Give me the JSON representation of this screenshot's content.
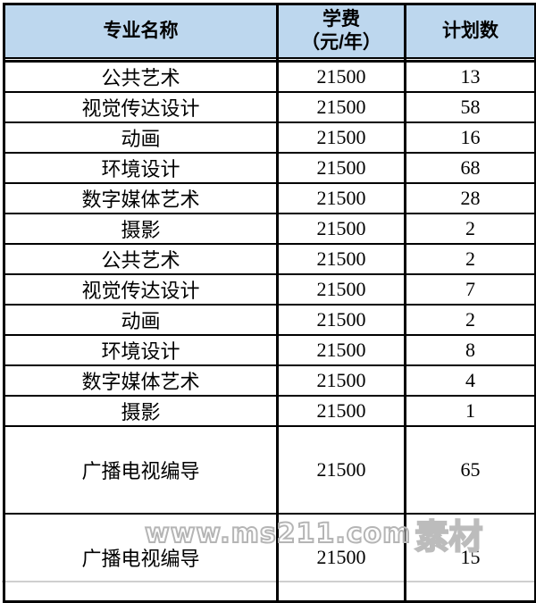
{
  "table": {
    "header": {
      "major": "专业名称",
      "tuition_line1": "学费",
      "tuition_line2": "（元/年）",
      "plan": "计划数"
    },
    "rows": [
      {
        "major": "公共艺术",
        "tuition": "21500",
        "plan": "13"
      },
      {
        "major": "视觉传达设计",
        "tuition": "21500",
        "plan": "58"
      },
      {
        "major": "动画",
        "tuition": "21500",
        "plan": "16"
      },
      {
        "major": "环境设计",
        "tuition": "21500",
        "plan": "68"
      },
      {
        "major": "数字媒体艺术",
        "tuition": "21500",
        "plan": "28"
      },
      {
        "major": "摄影",
        "tuition": "21500",
        "plan": "2"
      },
      {
        "major": "公共艺术",
        "tuition": "21500",
        "plan": "2"
      },
      {
        "major": "视觉传达设计",
        "tuition": "21500",
        "plan": "7"
      },
      {
        "major": "动画",
        "tuition": "21500",
        "plan": "2"
      },
      {
        "major": "环境设计",
        "tuition": "21500",
        "plan": "8"
      },
      {
        "major": "数字媒体艺术",
        "tuition": "21500",
        "plan": "4"
      },
      {
        "major": "摄影",
        "tuition": "21500",
        "plan": "1"
      },
      {
        "major": "广播电视编导",
        "tuition": "21500",
        "plan": "65"
      },
      {
        "major": "广播电视编导",
        "tuition": "21500",
        "plan": "15"
      }
    ]
  },
  "watermark": {
    "site": "www.ms211.com",
    "suffix": "素材"
  },
  "colors": {
    "header_bg": "#BDD7EE",
    "border": "#000000",
    "watermark_stroke": "#B5B5B5",
    "bottom_strip": "#CFCFCF"
  }
}
